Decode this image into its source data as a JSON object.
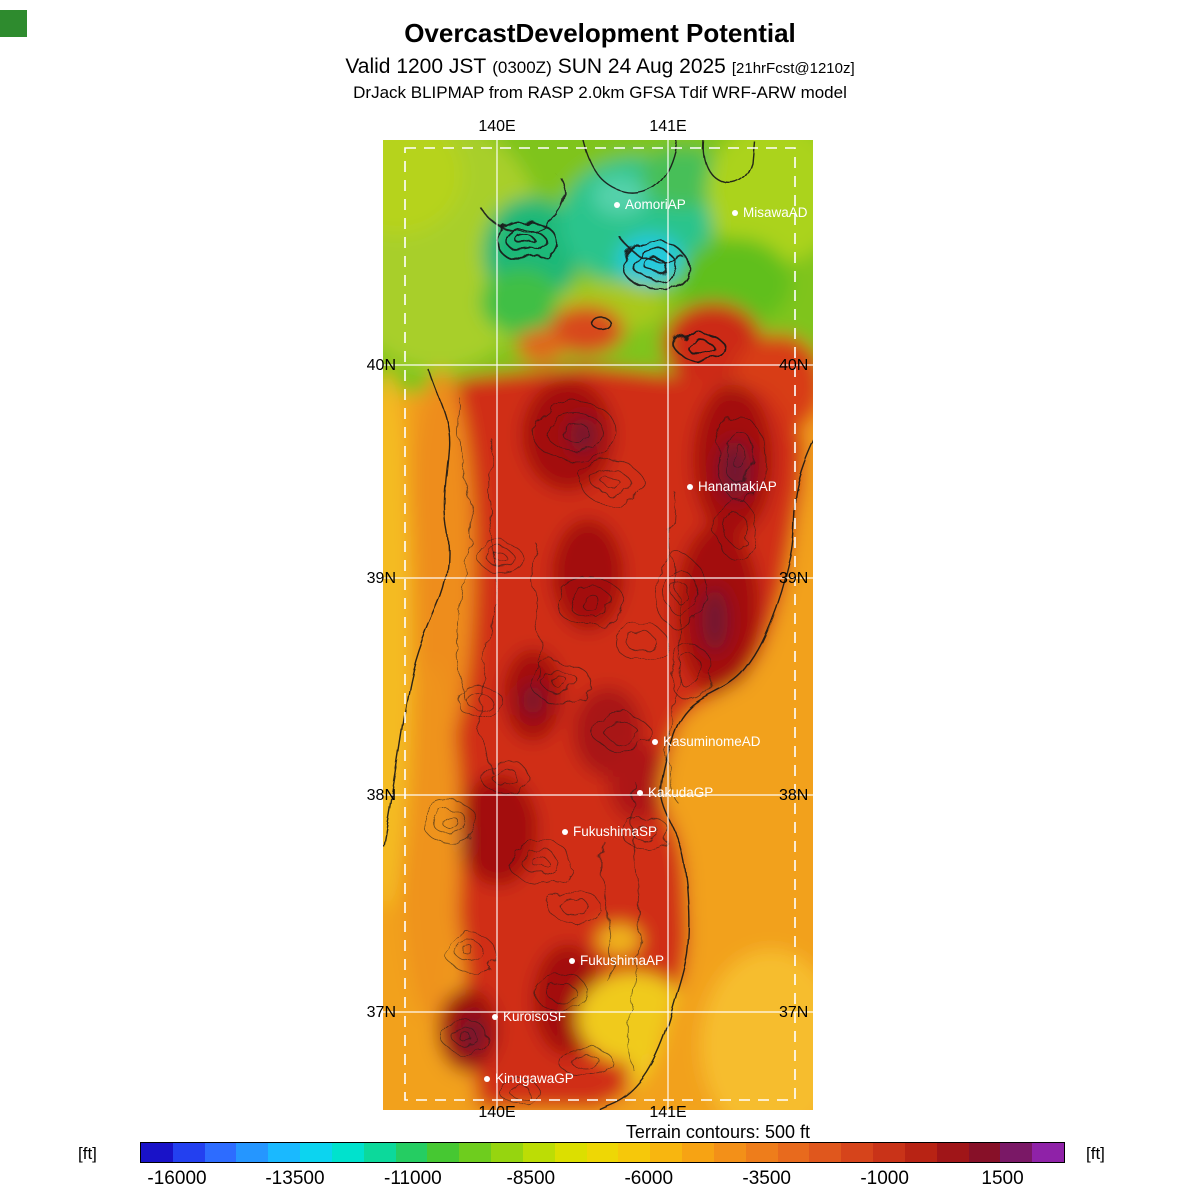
{
  "header": {
    "title": "OvercastDevelopment Potential",
    "valid_prefix": "Valid 1200 JST",
    "valid_zulu": "(0300Z)",
    "valid_date": "SUN 24 Aug 2025",
    "forecast_ref": "[21hrFcst@1210z]",
    "model_line": "DrJack BLIPMAP from RASP 2.0km GFSA Tdif WRF-ARW model"
  },
  "map": {
    "grid_labels": {
      "top": [
        "140E",
        "141E"
      ],
      "bottom": [
        "140E",
        "141E"
      ],
      "left": [
        "40N",
        "39N",
        "38N",
        "37N"
      ],
      "right": [
        "40N",
        "39N",
        "38N",
        "37N"
      ]
    },
    "stations": [
      {
        "label": "AomoriAP"
      },
      {
        "label": "MisawaAD"
      },
      {
        "label": "HanamakiAP"
      },
      {
        "label": "KasuminomeAD"
      },
      {
        "label": "KakudaGP"
      },
      {
        "label": "FukushimaSP"
      },
      {
        "label": "FukushimaAP"
      },
      {
        "label": "KuroisoSF"
      },
      {
        "label": "KinugawaGP"
      }
    ],
    "terrain_note": "Terrain contours: 500 ft"
  },
  "colorbar": {
    "unit_left": "[ft]",
    "unit_right": "[ft]",
    "ticks": [
      "-16000",
      "-13500",
      "-11000",
      "-8500",
      "-6000",
      "-3500",
      "-1000",
      "1500"
    ],
    "colors": [
      "#1912c8",
      "#2340f0",
      "#2d6cff",
      "#2596ff",
      "#1ab9ff",
      "#0cd4f0",
      "#00e2cd",
      "#0cd99b",
      "#25cd62",
      "#46c832",
      "#6ecd1e",
      "#96d50f",
      "#bcdd05",
      "#dcdf00",
      "#eed705",
      "#f6c80a",
      "#f8b60f",
      "#f7a313",
      "#f39018",
      "#ee7d1b",
      "#e86a1d",
      "#e0571d",
      "#d6441b",
      "#c93318",
      "#b82314",
      "#a01518",
      "#871028",
      "#7a1866",
      "#8f22a8"
    ]
  }
}
